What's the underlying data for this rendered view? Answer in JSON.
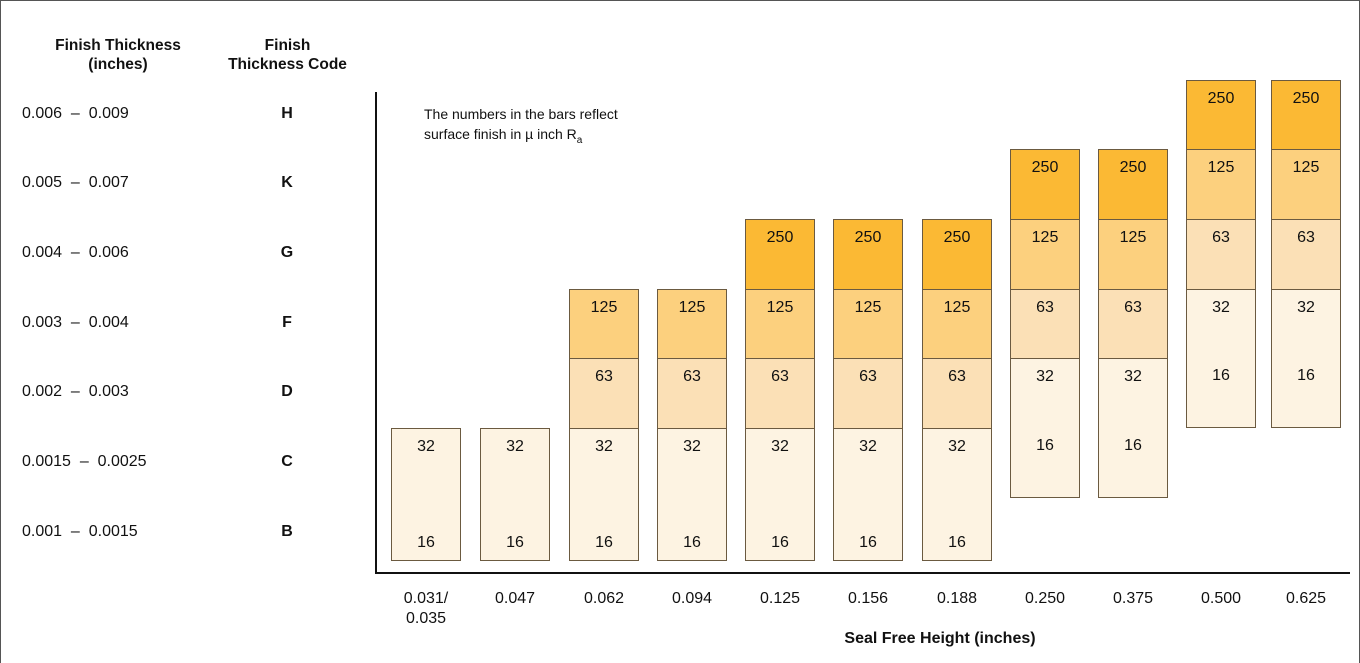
{
  "headers": {
    "thickness_line1": "Finish Thickness",
    "thickness_line2": "(inches)",
    "code_line1": "Finish",
    "code_line2": "Thickness Code"
  },
  "rows": [
    {
      "range": "0.006  –  0.009",
      "code": "H"
    },
    {
      "range": "0.005  –  0.007",
      "code": "K"
    },
    {
      "range": "0.004  –  0.006",
      "code": "G"
    },
    {
      "range": "0.003  –  0.004",
      "code": "F"
    },
    {
      "range": "0.002  –  0.003",
      "code": "D"
    },
    {
      "range": "0.0015  –  0.0025",
      "code": "C"
    },
    {
      "range": "0.001  –  0.0015",
      "code": "B"
    }
  ],
  "note": {
    "line1": "The numbers in the bars reflect",
    "line2_prefix": "surface finish in µ inch R",
    "line2_sub": "a"
  },
  "colors": {
    "16": "#fdf3e2",
    "32": "#fdf3e2",
    "63": "#fbe0b6",
    "125": "#fcd07e",
    "250": "#fbb934"
  },
  "chart_data": {
    "type": "table",
    "xlabel": "Seal Free Height (inches)",
    "x_ticks": [
      [
        "0.031/",
        "0.035"
      ],
      [
        "0.047"
      ],
      [
        "0.062"
      ],
      [
        "0.094"
      ],
      [
        "0.125"
      ],
      [
        "0.156"
      ],
      [
        "0.188"
      ],
      [
        "0.250"
      ],
      [
        "0.375"
      ],
      [
        "0.500"
      ],
      [
        "0.625"
      ]
    ],
    "row_codes": [
      "H",
      "K",
      "G",
      "F",
      "D",
      "C",
      "B"
    ],
    "columns": [
      {
        "x": "0.031/0.035",
        "cells": [
          {
            "row": "C",
            "finish": 32
          },
          {
            "row": "B",
            "finish": 16
          }
        ]
      },
      {
        "x": "0.047",
        "cells": [
          {
            "row": "C",
            "finish": 32
          },
          {
            "row": "B",
            "finish": 16
          }
        ]
      },
      {
        "x": "0.062",
        "cells": [
          {
            "row": "F",
            "finish": 125
          },
          {
            "row": "D",
            "finish": 63
          },
          {
            "row": "C",
            "finish": 32
          },
          {
            "row": "B",
            "finish": 16
          }
        ]
      },
      {
        "x": "0.094",
        "cells": [
          {
            "row": "F",
            "finish": 125
          },
          {
            "row": "D",
            "finish": 63
          },
          {
            "row": "C",
            "finish": 32
          },
          {
            "row": "B",
            "finish": 16
          }
        ]
      },
      {
        "x": "0.125",
        "cells": [
          {
            "row": "G",
            "finish": 250
          },
          {
            "row": "F",
            "finish": 125
          },
          {
            "row": "D",
            "finish": 63
          },
          {
            "row": "C",
            "finish": 32
          },
          {
            "row": "B",
            "finish": 16
          }
        ]
      },
      {
        "x": "0.156",
        "cells": [
          {
            "row": "G",
            "finish": 250
          },
          {
            "row": "F",
            "finish": 125
          },
          {
            "row": "D",
            "finish": 63
          },
          {
            "row": "C",
            "finish": 32
          },
          {
            "row": "B",
            "finish": 16
          }
        ]
      },
      {
        "x": "0.188",
        "cells": [
          {
            "row": "G",
            "finish": 250
          },
          {
            "row": "F",
            "finish": 125
          },
          {
            "row": "D",
            "finish": 63
          },
          {
            "row": "C",
            "finish": 32
          },
          {
            "row": "B",
            "finish": 16
          }
        ]
      },
      {
        "x": "0.250",
        "cells": [
          {
            "row": "K",
            "finish": 250
          },
          {
            "row": "G",
            "finish": 125
          },
          {
            "row": "F",
            "finish": 63
          },
          {
            "row": "D",
            "finish": 32
          },
          {
            "row": "C",
            "finish": 16
          }
        ]
      },
      {
        "x": "0.375",
        "cells": [
          {
            "row": "K",
            "finish": 250
          },
          {
            "row": "G",
            "finish": 125
          },
          {
            "row": "F",
            "finish": 63
          },
          {
            "row": "D",
            "finish": 32
          },
          {
            "row": "C",
            "finish": 16
          }
        ]
      },
      {
        "x": "0.500",
        "cells": [
          {
            "row": "H",
            "finish": 250
          },
          {
            "row": "K",
            "finish": 125
          },
          {
            "row": "G",
            "finish": 63
          },
          {
            "row": "F",
            "finish": 32
          },
          {
            "row": "D",
            "finish": 16
          }
        ]
      },
      {
        "x": "0.625",
        "cells": [
          {
            "row": "H",
            "finish": 250
          },
          {
            "row": "K",
            "finish": 125
          },
          {
            "row": "G",
            "finish": 63
          },
          {
            "row": "F",
            "finish": 32
          },
          {
            "row": "D",
            "finish": 16
          }
        ]
      }
    ]
  }
}
